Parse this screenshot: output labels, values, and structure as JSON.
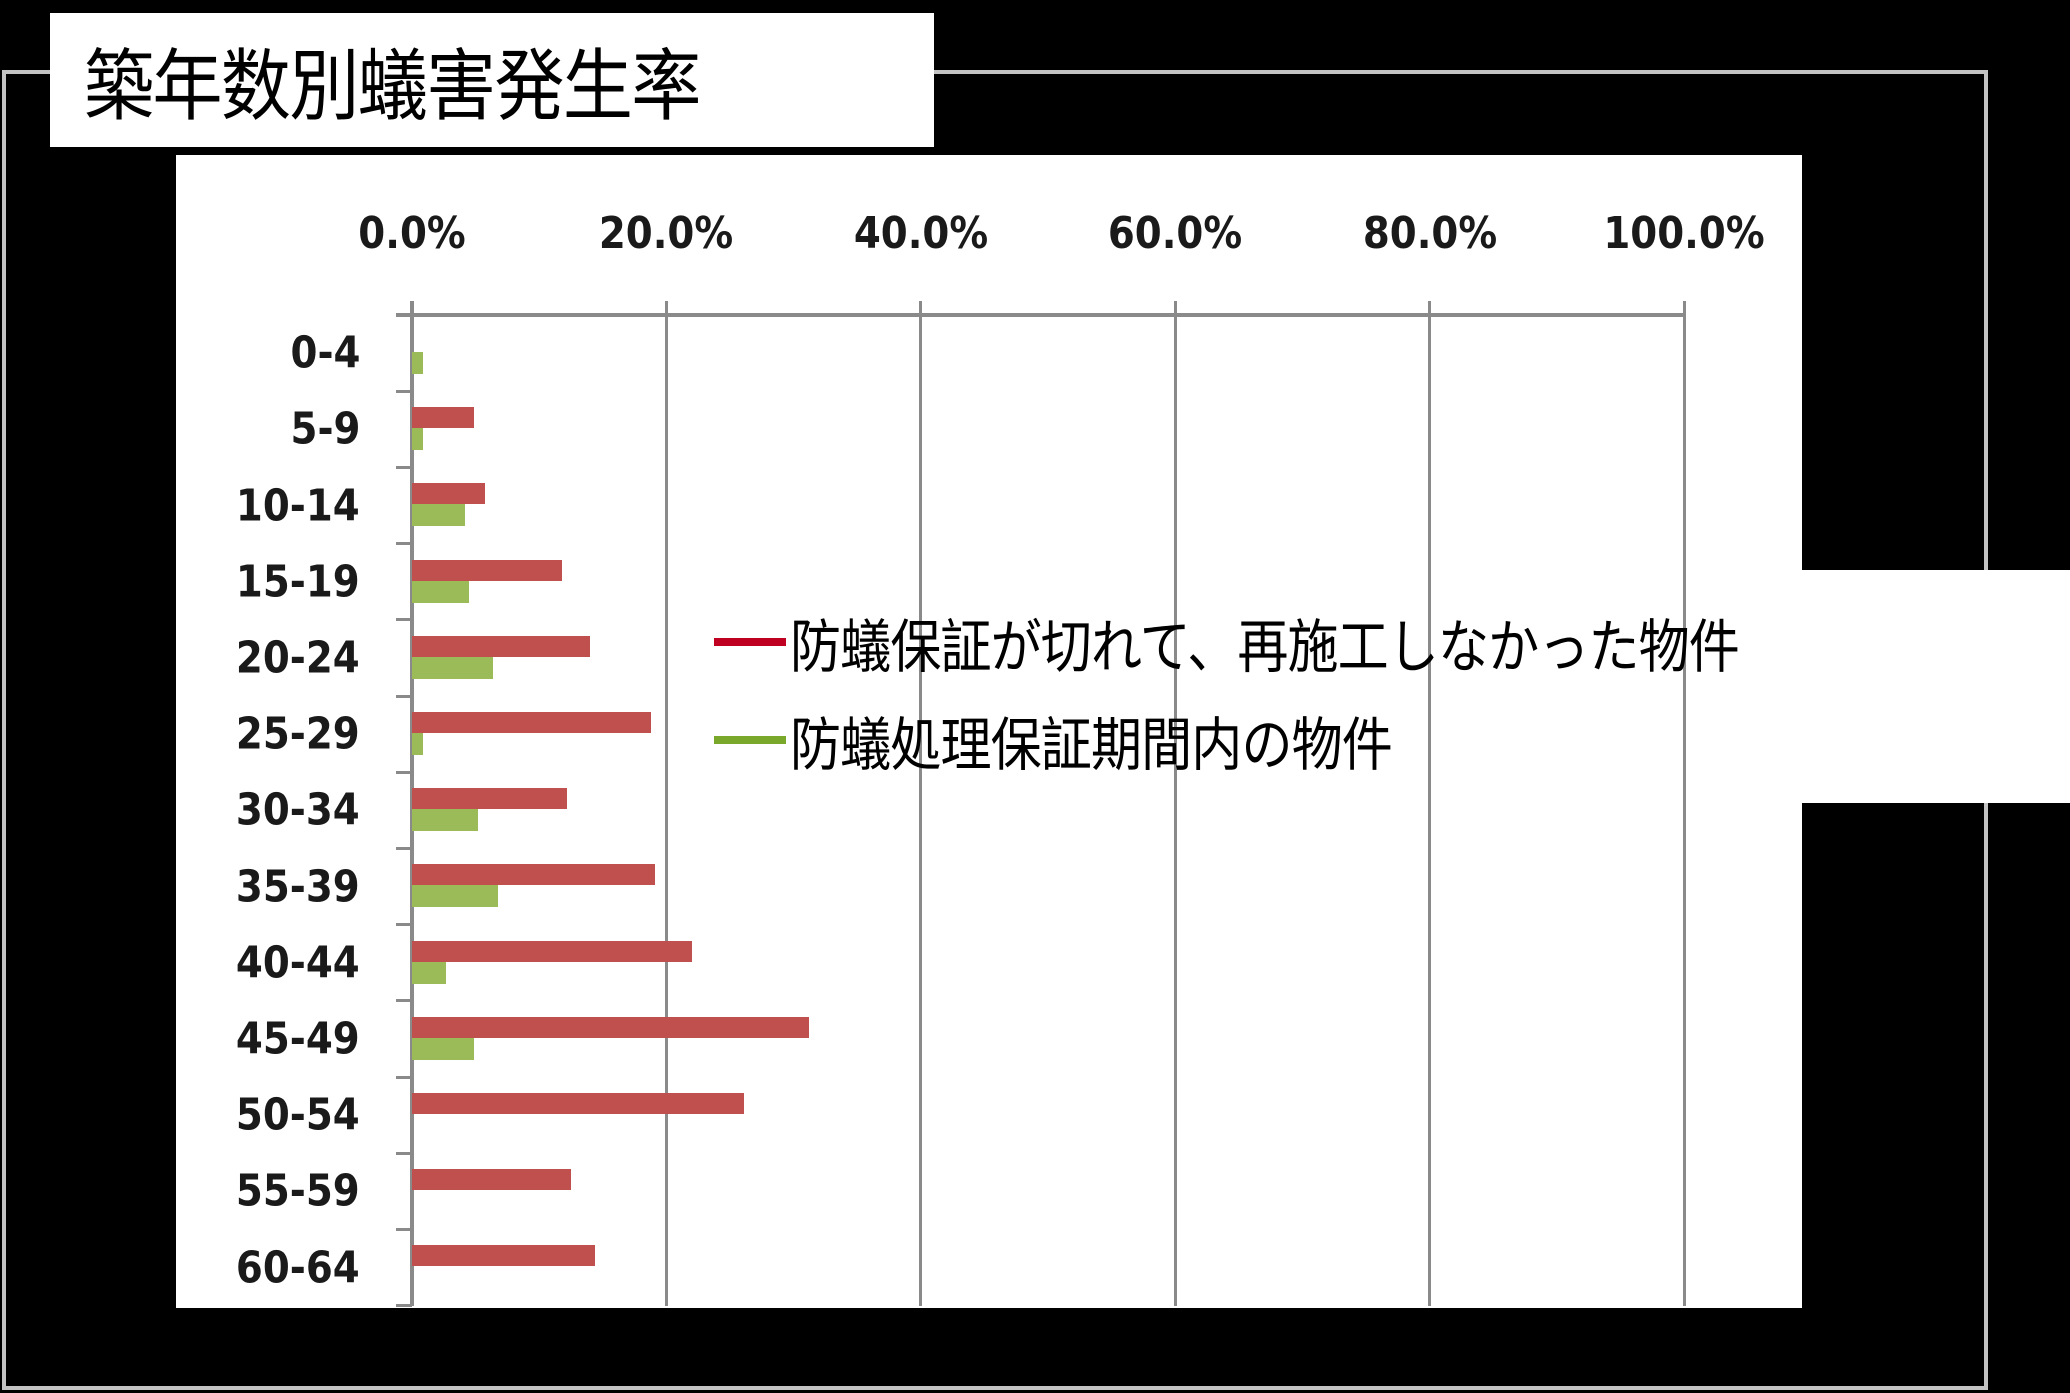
{
  "title": "築年数別蟻害発生率",
  "chart_data": {
    "type": "bar",
    "orientation": "horizontal",
    "title": "築年数別蟻害発生率",
    "xlabel": "",
    "ylabel": "",
    "xlim": [
      0,
      100
    ],
    "x_ticks": [
      "0.0%",
      "20.0%",
      "40.0%",
      "60.0%",
      "80.0%",
      "100.0%"
    ],
    "x_axis_position": "top",
    "grid": true,
    "legend_position": "right",
    "categories": [
      "0-4",
      "5-9",
      "10-14",
      "15-19",
      "20-24",
      "25-29",
      "30-34",
      "35-39",
      "40-44",
      "45-49",
      "50-54",
      "55-59",
      "60-64"
    ],
    "series": [
      {
        "name": "防蟻保証が切れて、再施工しなかった物件",
        "color": "#c0504d",
        "legend_color": "#c00020",
        "values": [
          0,
          4.9,
          5.7,
          11.8,
          14.0,
          18.8,
          12.2,
          19.1,
          22.0,
          31.2,
          26.1,
          12.5,
          14.4
        ]
      },
      {
        "name": "防蟻処理保証期間内の物件",
        "color": "#9bbb59",
        "legend_color": "#7aa82a",
        "values": [
          0.9,
          0.9,
          4.2,
          4.5,
          6.4,
          0.9,
          5.2,
          6.8,
          2.7,
          4.9,
          0,
          0,
          0
        ]
      }
    ]
  },
  "legend": {
    "items": [
      {
        "label": "防蟻保証が切れて、再施工しなかった物件",
        "color": "#c00020"
      },
      {
        "label": "防蟻処理保証期間内の物件",
        "color": "#7aa82a"
      }
    ]
  }
}
